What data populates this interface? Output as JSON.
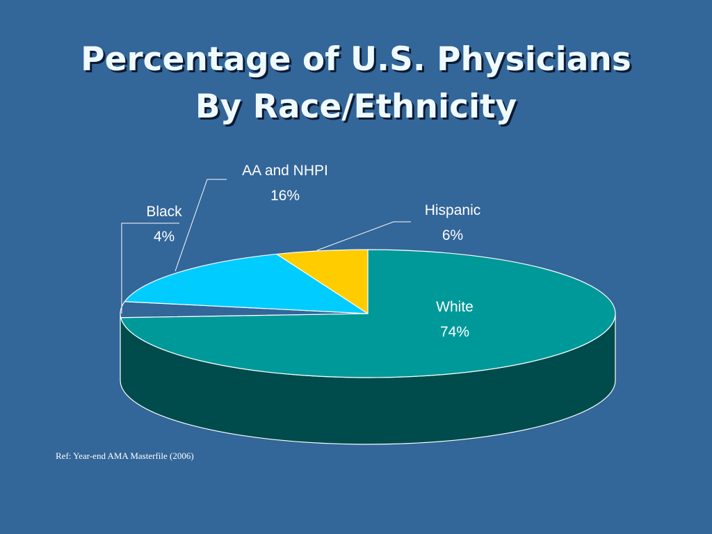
{
  "title": {
    "line1": "Percentage of U.S. Physicians",
    "line2": "By Race/Ethnicity"
  },
  "reference": "Ref: Year-end AMA Masterfile (2006)",
  "colors": {
    "background": "#336699",
    "white_top": "#009999",
    "white_side": "#004c4c",
    "black": "#336699",
    "aa_nhpi": "#00ccff",
    "hispanic": "#ffcc00",
    "outline": "#ffffff"
  },
  "chart_data": {
    "type": "pie",
    "title": "Percentage of U.S. Physicians By Race/Ethnicity",
    "style": "3d",
    "slices": [
      {
        "label": "White",
        "value": 74,
        "value_label": "74%"
      },
      {
        "label": "Black",
        "value": 4,
        "value_label": "4%"
      },
      {
        "label": "AA and NHPI",
        "value": 16,
        "value_label": "16%"
      },
      {
        "label": "Hispanic",
        "value": 6,
        "value_label": "6%"
      }
    ]
  }
}
